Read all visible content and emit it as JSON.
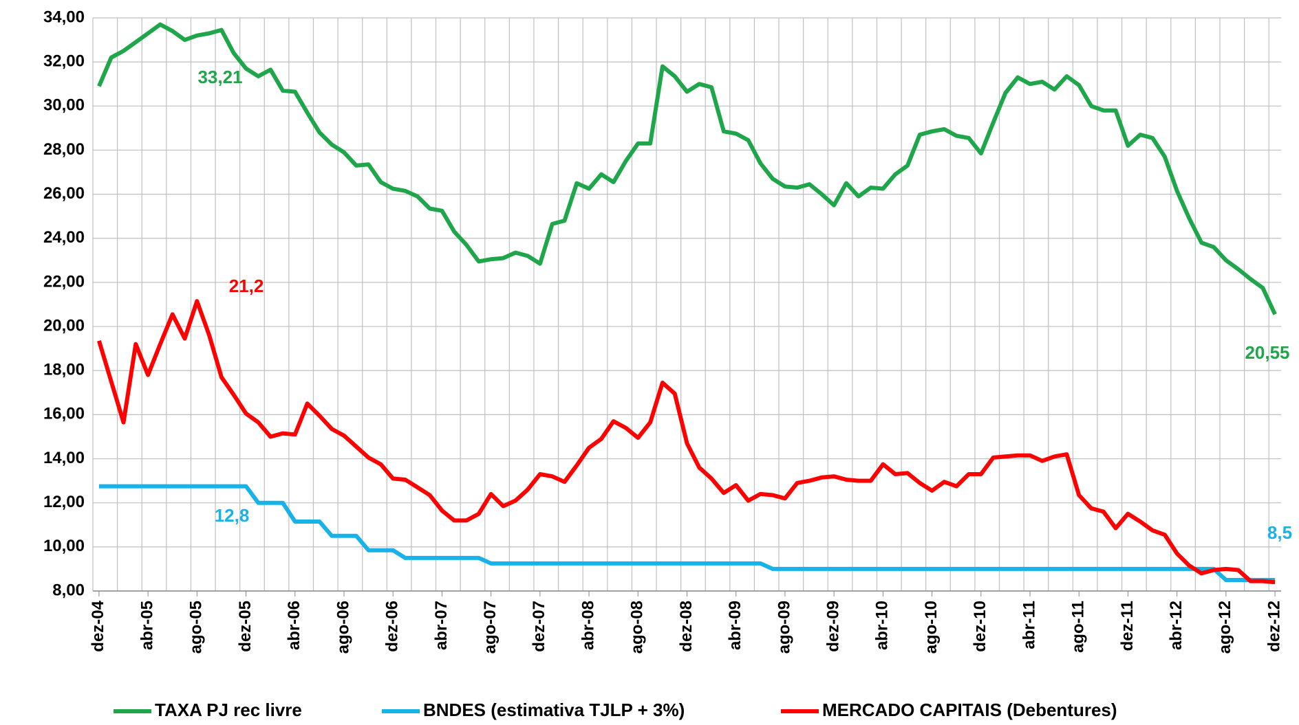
{
  "chart_data": {
    "type": "line",
    "categories": [
      "dez-04",
      null,
      null,
      null,
      "abr-05",
      null,
      null,
      null,
      "ago-05",
      null,
      null,
      null,
      "dez-05",
      null,
      null,
      null,
      "abr-06",
      null,
      null,
      null,
      "ago-06",
      null,
      null,
      null,
      "dez-06",
      null,
      null,
      null,
      "abr-07",
      null,
      null,
      null,
      "ago-07",
      null,
      null,
      null,
      "dez-07",
      null,
      null,
      null,
      "abr-08",
      null,
      null,
      null,
      "ago-08",
      null,
      null,
      null,
      "dez-08",
      null,
      null,
      null,
      "abr-09",
      null,
      null,
      null,
      "ago-09",
      null,
      null,
      null,
      "dez-09",
      null,
      null,
      null,
      "abr-10",
      null,
      null,
      null,
      "ago-10",
      null,
      null,
      null,
      "dez-10",
      null,
      null,
      null,
      "abr-11",
      null,
      null,
      null,
      "ago-11",
      null,
      null,
      null,
      "dez-11",
      null,
      null,
      null,
      "abr-12",
      null,
      null,
      null,
      "ago-12",
      null,
      null,
      null,
      "dez-12"
    ],
    "series": [
      {
        "name": "TAXA PJ rec livre",
        "color": "#1fa64b",
        "values": [
          30.9,
          32.2,
          32.5,
          32.9,
          33.3,
          33.7,
          33.4,
          33.0,
          33.2,
          33.3,
          33.45,
          32.4,
          31.7,
          31.35,
          31.65,
          30.7,
          30.65,
          29.7,
          28.8,
          28.25,
          27.9,
          27.3,
          27.35,
          26.55,
          26.25,
          26.15,
          25.9,
          25.35,
          25.25,
          24.3,
          23.7,
          22.95,
          23.05,
          23.1,
          23.35,
          23.2,
          22.85,
          24.65,
          24.8,
          26.5,
          26.25,
          26.9,
          26.55,
          27.5,
          28.3,
          28.3,
          31.8,
          31.35,
          30.65,
          31.0,
          30.85,
          28.85,
          28.75,
          28.45,
          27.4,
          26.7,
          26.35,
          26.3,
          26.45,
          26.0,
          25.5,
          26.5,
          25.9,
          26.3,
          26.25,
          26.9,
          27.3,
          28.7,
          28.85,
          28.95,
          28.65,
          28.55,
          27.85,
          29.25,
          30.6,
          31.3,
          31.0,
          31.1,
          30.75,
          31.35,
          30.95,
          30.0,
          29.8,
          29.8,
          28.2,
          28.7,
          28.55,
          27.7,
          26.15,
          24.9,
          23.8,
          23.6,
          23.0,
          22.6,
          22.15,
          21.75,
          20.55
        ]
      },
      {
        "name": "BNDES (estimativa TJLP + 3%)",
        "color": "#19b2e8",
        "values": [
          12.75,
          12.75,
          12.75,
          12.75,
          12.75,
          12.75,
          12.75,
          12.75,
          12.75,
          12.75,
          12.75,
          12.75,
          12.75,
          12.0,
          12.0,
          12.0,
          11.15,
          11.15,
          11.15,
          10.5,
          10.5,
          10.5,
          9.85,
          9.85,
          9.85,
          9.5,
          9.5,
          9.5,
          9.5,
          9.5,
          9.5,
          9.5,
          9.25,
          9.25,
          9.25,
          9.25,
          9.25,
          9.25,
          9.25,
          9.25,
          9.25,
          9.25,
          9.25,
          9.25,
          9.25,
          9.25,
          9.25,
          9.25,
          9.25,
          9.25,
          9.25,
          9.25,
          9.25,
          9.25,
          9.25,
          9.0,
          9.0,
          9.0,
          9.0,
          9.0,
          9.0,
          9.0,
          9.0,
          9.0,
          9.0,
          9.0,
          9.0,
          9.0,
          9.0,
          9.0,
          9.0,
          9.0,
          9.0,
          9.0,
          9.0,
          9.0,
          9.0,
          9.0,
          9.0,
          9.0,
          9.0,
          9.0,
          9.0,
          9.0,
          9.0,
          9.0,
          9.0,
          9.0,
          9.0,
          9.0,
          9.0,
          9.0,
          8.5,
          8.5,
          8.5,
          8.5,
          8.5
        ]
      },
      {
        "name": "MERCADO CAPITAIS (Debentures)",
        "color": "#ff0000",
        "values": [
          19.35,
          17.5,
          15.65,
          19.2,
          17.8,
          19.2,
          20.55,
          19.45,
          21.15,
          19.6,
          17.7,
          16.9,
          16.05,
          15.65,
          15.0,
          15.15,
          15.1,
          16.5,
          15.95,
          15.35,
          15.05,
          14.55,
          14.05,
          13.75,
          13.1,
          13.05,
          12.7,
          12.35,
          11.65,
          11.2,
          11.2,
          11.5,
          12.4,
          11.85,
          12.1,
          12.6,
          13.3,
          13.2,
          12.95,
          13.7,
          14.5,
          14.9,
          15.7,
          15.4,
          14.95,
          15.65,
          17.45,
          16.95,
          14.7,
          13.6,
          13.1,
          12.45,
          12.8,
          12.1,
          12.4,
          12.35,
          12.2,
          12.9,
          13.0,
          13.15,
          13.2,
          13.05,
          13.0,
          13.0,
          13.75,
          13.3,
          13.35,
          12.9,
          12.55,
          12.95,
          12.75,
          13.3,
          13.3,
          14.05,
          14.1,
          14.15,
          14.15,
          13.9,
          14.1,
          14.2,
          12.35,
          11.75,
          11.6,
          10.85,
          11.5,
          11.15,
          10.75,
          10.55,
          9.7,
          9.15,
          8.8,
          8.95,
          9.0,
          8.95,
          8.45,
          8.45,
          8.4
        ]
      }
    ],
    "annotations": [
      {
        "text": "33,21",
        "color": "#1fa64b"
      },
      {
        "text": "21,2",
        "color": "#ff0000"
      },
      {
        "text": "12,8",
        "color": "#19b2e8"
      },
      {
        "text": "20,55",
        "color": "#1fa64b"
      },
      {
        "text": "8,5",
        "color": "#19b2e8"
      }
    ],
    "ylim": [
      8,
      34
    ],
    "yticks": [
      {
        "value": 8,
        "label": "8,00"
      },
      {
        "value": 10,
        "label": "10,00"
      },
      {
        "value": 12,
        "label": "12,00"
      },
      {
        "value": 14,
        "label": "14,00"
      },
      {
        "value": 16,
        "label": "16,00"
      },
      {
        "value": 18,
        "label": "18,00"
      },
      {
        "value": 20,
        "label": "20,00"
      },
      {
        "value": 22,
        "label": "22,00"
      },
      {
        "value": 24,
        "label": "24,00"
      },
      {
        "value": 26,
        "label": "26,00"
      },
      {
        "value": 28,
        "label": "28,00"
      },
      {
        "value": 30,
        "label": "30,00"
      },
      {
        "value": 32,
        "label": "32,00"
      },
      {
        "value": 34,
        "label": "34,00"
      }
    ],
    "grid": true,
    "legend": "bottom"
  }
}
